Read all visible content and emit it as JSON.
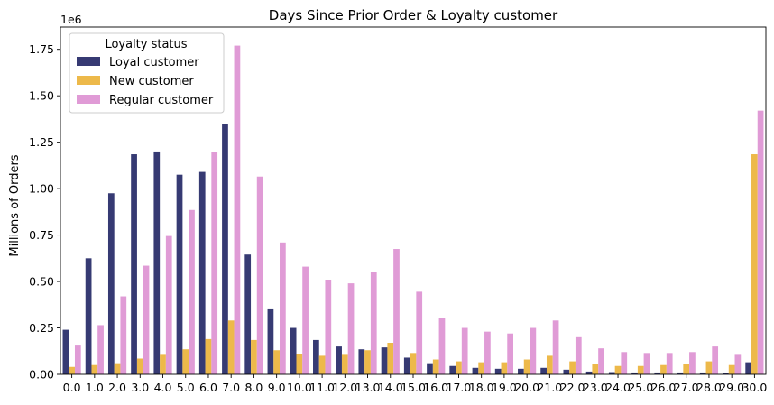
{
  "chart_data": {
    "type": "bar",
    "title": "Days Since Prior Order & Loyalty customer",
    "xlabel": "",
    "ylabel": "Millions of Orders",
    "offset_text": "1e6",
    "ylim": [
      0,
      1870000
    ],
    "yticks": [
      0,
      250000,
      500000,
      750000,
      1000000,
      1250000,
      1500000,
      1750000
    ],
    "ytick_labels": [
      "0.00",
      "0.25",
      "0.50",
      "0.75",
      "1.00",
      "1.25",
      "1.50",
      "1.75"
    ],
    "legend_title": "Loyalty status",
    "legend_position": "top-left",
    "grid": false,
    "categories": [
      "0.0",
      "1.0",
      "2.0",
      "3.0",
      "4.0",
      "5.0",
      "6.0",
      "7.0",
      "8.0",
      "9.0",
      "10.0",
      "11.0",
      "12.0",
      "13.0",
      "14.0",
      "15.0",
      "16.0",
      "17.0",
      "18.0",
      "19.0",
      "20.0",
      "21.0",
      "22.0",
      "23.0",
      "24.0",
      "25.0",
      "26.0",
      "27.0",
      "28.0",
      "29.0",
      "30.0"
    ],
    "series": [
      {
        "name": "Loyal customer",
        "color": "#363A73",
        "values": [
          240000,
          625000,
          975000,
          1185000,
          1200000,
          1075000,
          1090000,
          1350000,
          645000,
          350000,
          250000,
          185000,
          150000,
          135000,
          145000,
          90000,
          60000,
          45000,
          35000,
          30000,
          30000,
          35000,
          25000,
          15000,
          12000,
          10000,
          10000,
          10000,
          10000,
          5000,
          65000
        ]
      },
      {
        "name": "New customer",
        "color": "#EDB94A",
        "values": [
          40000,
          50000,
          60000,
          85000,
          105000,
          135000,
          190000,
          290000,
          185000,
          130000,
          110000,
          100000,
          105000,
          130000,
          170000,
          115000,
          80000,
          70000,
          65000,
          65000,
          80000,
          100000,
          70000,
          55000,
          45000,
          45000,
          50000,
          55000,
          70000,
          50000,
          1185000
        ]
      },
      {
        "name": "Regular customer",
        "color": "#E09BD6",
        "values": [
          155000,
          265000,
          420000,
          585000,
          745000,
          885000,
          1195000,
          1770000,
          1065000,
          710000,
          580000,
          510000,
          490000,
          550000,
          675000,
          445000,
          305000,
          250000,
          230000,
          220000,
          250000,
          290000,
          200000,
          140000,
          120000,
          115000,
          115000,
          120000,
          150000,
          105000,
          1420000
        ]
      }
    ]
  }
}
